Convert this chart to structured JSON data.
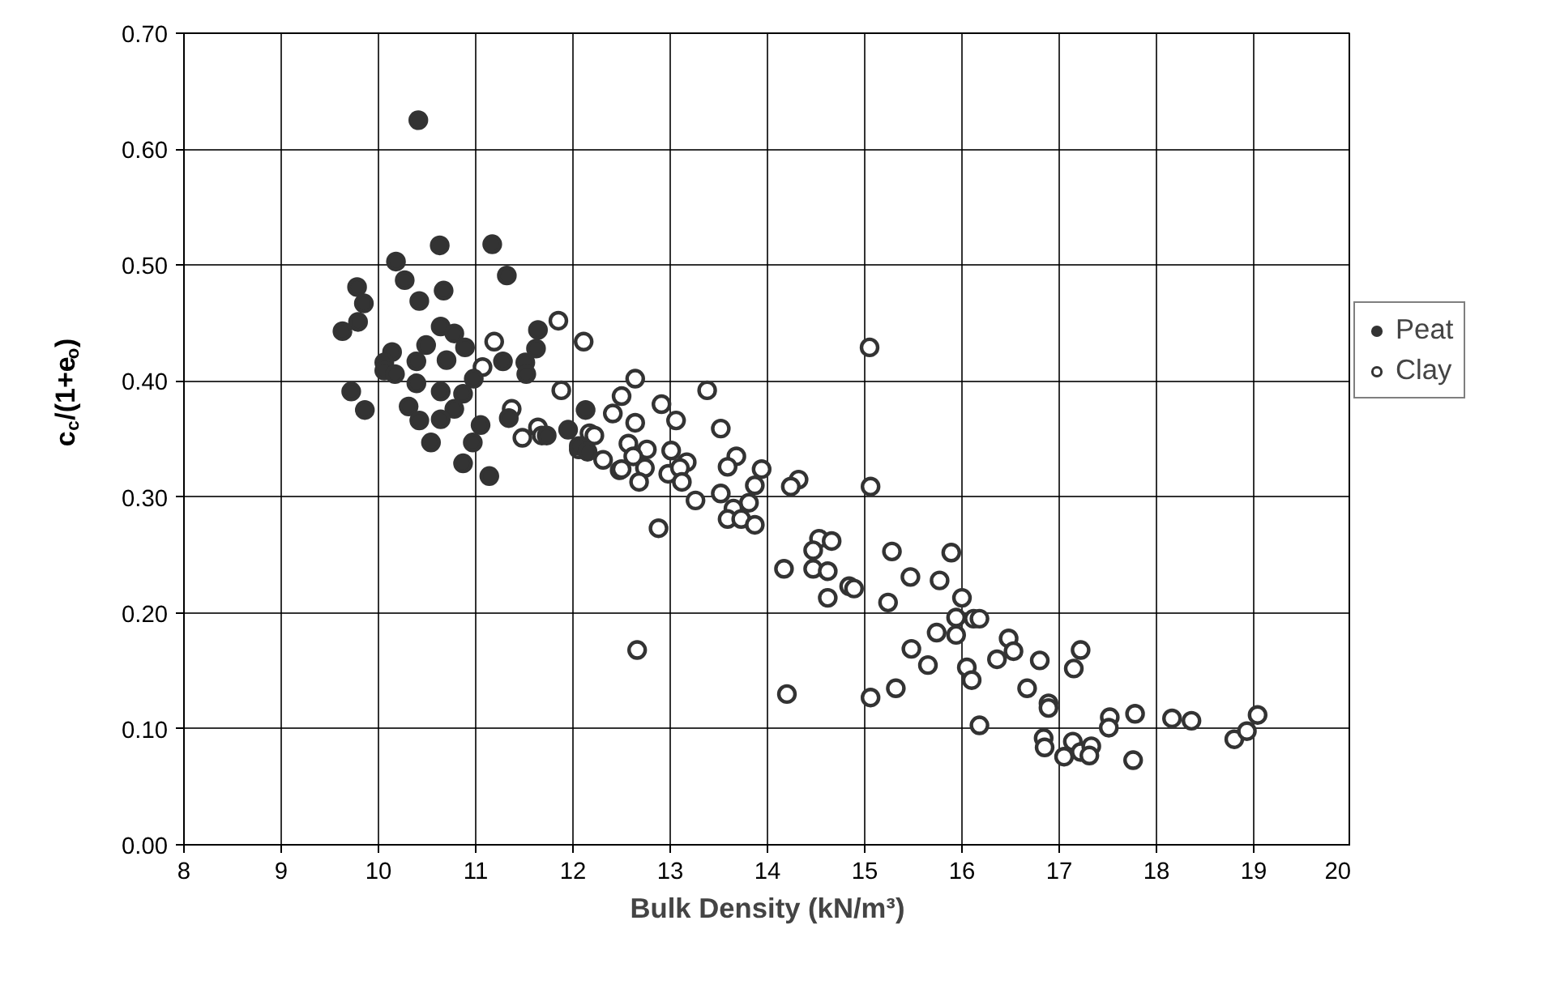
{
  "chart_data": {
    "type": "scatter",
    "xlabel": "Bulk Density (kN/m³)",
    "ylabel": "c$_{c}$/(1+e$_{o}$)",
    "xlim": [
      8,
      20
    ],
    "xticks": [
      8,
      9,
      10,
      11,
      12,
      13,
      14,
      15,
      16,
      17,
      18,
      19,
      20
    ],
    "ylim": [
      0,
      0.7
    ],
    "yticks": [
      {
        "value": 0,
        "label": "0.00"
      },
      {
        "value": 0.1,
        "label": "0.10"
      },
      {
        "value": 0.2,
        "label": "0.20"
      },
      {
        "value": 0.3,
        "label": "0.30"
      },
      {
        "value": 0.4,
        "label": "0.40"
      },
      {
        "value": 0.5,
        "label": "0.50"
      },
      {
        "value": 0.6,
        "label": "0.60"
      },
      {
        "value": 0.7,
        "label": "0.70"
      }
    ],
    "grid": true,
    "legend": "right",
    "marker": "circle",
    "series": [
      {
        "name": "Peat",
        "color": "#333333",
        "x": [
          10.41,
          10.63,
          11.17,
          10.18,
          11.32,
          10.27,
          9.78,
          10.67,
          9.85,
          10.42,
          9.79,
          9.63,
          10.64,
          10.78,
          11.64,
          10.49,
          10.89,
          11.62,
          10.14,
          10.06,
          10.39,
          10.7,
          10.06,
          10.17,
          11.28,
          11.51,
          11.52,
          10.98,
          10.39,
          10.64,
          9.72,
          10.87,
          9.86,
          10.31,
          10.78,
          10.42,
          10.64,
          11.34,
          11.05,
          12.13,
          10.54,
          10.97,
          10.87,
          11.14,
          11.73,
          11.95,
          12.06,
          12.15
        ],
        "values": [
          0.625,
          0.517,
          0.518,
          0.503,
          0.491,
          0.487,
          0.481,
          0.478,
          0.467,
          0.469,
          0.451,
          0.443,
          0.447,
          0.441,
          0.444,
          0.431,
          0.429,
          0.428,
          0.425,
          0.416,
          0.417,
          0.418,
          0.409,
          0.406,
          0.417,
          0.416,
          0.406,
          0.402,
          0.398,
          0.391,
          0.391,
          0.389,
          0.375,
          0.378,
          0.376,
          0.366,
          0.367,
          0.368,
          0.362,
          0.375,
          0.347,
          0.347,
          0.329,
          0.318,
          0.353,
          0.358,
          0.344,
          0.339
        ]
      },
      {
        "name": "Clay",
        "color": "#333333",
        "x": [
          11.85,
          11.19,
          12.11,
          11.07,
          11.88,
          12.41,
          11.37,
          11.64,
          11.48,
          11.68,
          12.17,
          12.22,
          12.06,
          12.31,
          12.48,
          12.64,
          13.38,
          12.91,
          13.06,
          12.64,
          12.5,
          13.52,
          12.57,
          12.76,
          13.01,
          13.68,
          12.62,
          13.17,
          13.59,
          13.94,
          12.5,
          12.74,
          12.98,
          13.1,
          12.68,
          13.12,
          13.87,
          14.32,
          14.24,
          15.06,
          13.52,
          13.26,
          13.81,
          13.65,
          13.59,
          13.73,
          13.87,
          12.88,
          15.05,
          14.53,
          14.66,
          14.47,
          14.17,
          14.47,
          14.62,
          15.28,
          15.89,
          15.47,
          14.84,
          14.89,
          14.62,
          15.24,
          15.77,
          16.0,
          12.66,
          14.2,
          15.06,
          15.32,
          15.48,
          15.65,
          15.74,
          15.94,
          15.94,
          16.05,
          16.12,
          16.18,
          16.48,
          16.53,
          16.36,
          16.8,
          17.22,
          17.15,
          16.1,
          16.67,
          16.89,
          16.89,
          16.18,
          16.84,
          16.85,
          17.14,
          17.05,
          17.22,
          17.33,
          17.31,
          17.52,
          17.51,
          17.78,
          17.76,
          18.16,
          18.36,
          18.8,
          18.93,
          19.04
        ],
        "values": [
          0.452,
          0.434,
          0.434,
          0.412,
          0.392,
          0.372,
          0.376,
          0.36,
          0.351,
          0.353,
          0.355,
          0.353,
          0.341,
          0.332,
          0.323,
          0.402,
          0.392,
          0.38,
          0.366,
          0.364,
          0.387,
          0.359,
          0.346,
          0.341,
          0.34,
          0.335,
          0.335,
          0.33,
          0.326,
          0.324,
          0.324,
          0.325,
          0.32,
          0.325,
          0.313,
          0.313,
          0.31,
          0.315,
          0.309,
          0.309,
          0.303,
          0.297,
          0.295,
          0.29,
          0.281,
          0.281,
          0.276,
          0.273,
          0.429,
          0.264,
          0.262,
          0.254,
          0.238,
          0.238,
          0.236,
          0.253,
          0.252,
          0.231,
          0.223,
          0.221,
          0.213,
          0.209,
          0.228,
          0.213,
          0.168,
          0.13,
          0.127,
          0.135,
          0.169,
          0.155,
          0.183,
          0.196,
          0.181,
          0.153,
          0.195,
          0.195,
          0.178,
          0.167,
          0.16,
          0.159,
          0.168,
          0.152,
          0.142,
          0.135,
          0.122,
          0.118,
          0.103,
          0.092,
          0.084,
          0.089,
          0.076,
          0.08,
          0.085,
          0.077,
          0.11,
          0.101,
          0.113,
          0.073,
          0.109,
          0.107,
          0.091,
          0.098,
          0.112
        ]
      }
    ]
  }
}
